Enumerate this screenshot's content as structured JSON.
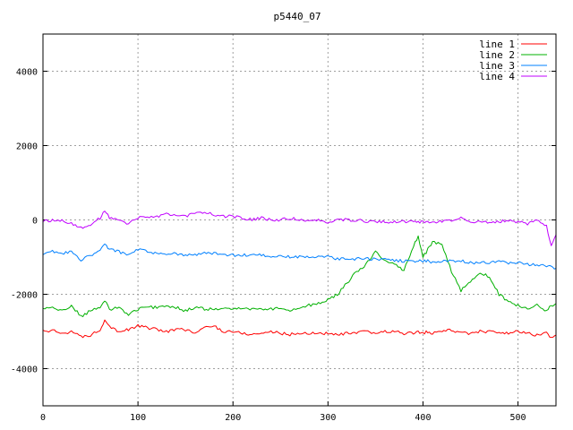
{
  "chart_data": {
    "type": "line",
    "title": "p5440_07",
    "xlabel": "",
    "ylabel": "",
    "xlim": [
      0,
      540
    ],
    "ylim": [
      -5000,
      5000
    ],
    "xticks": [
      0,
      100,
      200,
      300,
      400,
      500
    ],
    "yticks": [
      -4000,
      -2000,
      0,
      2000,
      4000
    ],
    "grid": true,
    "legend_position": "top-right",
    "colors": {
      "line 1": "#ff0000",
      "line 2": "#00b000",
      "line 3": "#0080ff",
      "line 4": "#c000ff"
    },
    "x": [
      0,
      10,
      20,
      30,
      40,
      50,
      60,
      65,
      70,
      80,
      90,
      100,
      110,
      120,
      130,
      140,
      150,
      160,
      170,
      180,
      190,
      200,
      210,
      220,
      230,
      240,
      250,
      260,
      270,
      280,
      290,
      300,
      310,
      320,
      330,
      340,
      350,
      360,
      370,
      380,
      390,
      395,
      400,
      405,
      410,
      420,
      430,
      440,
      450,
      460,
      470,
      480,
      490,
      500,
      510,
      520,
      530,
      535,
      540
    ],
    "series": [
      {
        "name": "line 1",
        "values": [
          -3000,
          -2980,
          -3050,
          -3000,
          -3150,
          -3100,
          -2950,
          -2700,
          -2850,
          -3000,
          -2950,
          -2850,
          -2900,
          -2950,
          -3000,
          -2950,
          -2950,
          -3050,
          -2900,
          -2850,
          -3000,
          -3000,
          -3050,
          -3080,
          -3050,
          -3000,
          -3050,
          -3080,
          -3050,
          -3050,
          -3050,
          -3050,
          -3100,
          -3050,
          -3050,
          -3000,
          -3050,
          -3000,
          -3000,
          -3050,
          -3050,
          -3000,
          -3050,
          -3000,
          -3050,
          -3000,
          -2950,
          -3050,
          -3050,
          -3000,
          -3000,
          -3050,
          -3050,
          -3000,
          -3050,
          -3100,
          -3050,
          -3150,
          -3100
        ]
      },
      {
        "name": "line 2",
        "values": [
          -2400,
          -2350,
          -2450,
          -2300,
          -2600,
          -2450,
          -2350,
          -2150,
          -2400,
          -2350,
          -2550,
          -2400,
          -2350,
          -2350,
          -2300,
          -2350,
          -2450,
          -2350,
          -2400,
          -2400,
          -2400,
          -2400,
          -2350,
          -2400,
          -2400,
          -2400,
          -2350,
          -2450,
          -2350,
          -2300,
          -2250,
          -2150,
          -2000,
          -1700,
          -1400,
          -1200,
          -850,
          -1100,
          -1200,
          -1350,
          -700,
          -450,
          -1000,
          -800,
          -600,
          -650,
          -1400,
          -1900,
          -1650,
          -1400,
          -1550,
          -2000,
          -2200,
          -2300,
          -2400,
          -2300,
          -2450,
          -2300,
          -2250
        ]
      },
      {
        "name": "line 3",
        "values": [
          -900,
          -850,
          -900,
          -850,
          -1100,
          -950,
          -850,
          -650,
          -800,
          -850,
          -950,
          -800,
          -850,
          -900,
          -900,
          -900,
          -950,
          -950,
          -900,
          -900,
          -950,
          -950,
          -950,
          -950,
          -950,
          -1000,
          -950,
          -1000,
          -1000,
          -1000,
          -1000,
          -1000,
          -1050,
          -1050,
          -1050,
          -1050,
          -1050,
          -1050,
          -1100,
          -1100,
          -1100,
          -1100,
          -1100,
          -1100,
          -1150,
          -1100,
          -1100,
          -1100,
          -1150,
          -1150,
          -1150,
          -1100,
          -1150,
          -1150,
          -1200,
          -1200,
          -1250,
          -1250,
          -1300
        ]
      },
      {
        "name": "line 4",
        "values": [
          -50,
          0,
          0,
          -100,
          -200,
          -150,
          50,
          250,
          50,
          0,
          -100,
          50,
          100,
          100,
          150,
          100,
          100,
          200,
          200,
          150,
          100,
          100,
          50,
          0,
          50,
          0,
          0,
          50,
          0,
          0,
          0,
          -50,
          0,
          0,
          0,
          -50,
          -50,
          -50,
          -50,
          -50,
          -50,
          -50,
          -50,
          -50,
          -50,
          -50,
          0,
          50,
          -50,
          -50,
          -50,
          -50,
          0,
          -50,
          -100,
          0,
          -150,
          -700,
          -400
        ]
      }
    ]
  }
}
